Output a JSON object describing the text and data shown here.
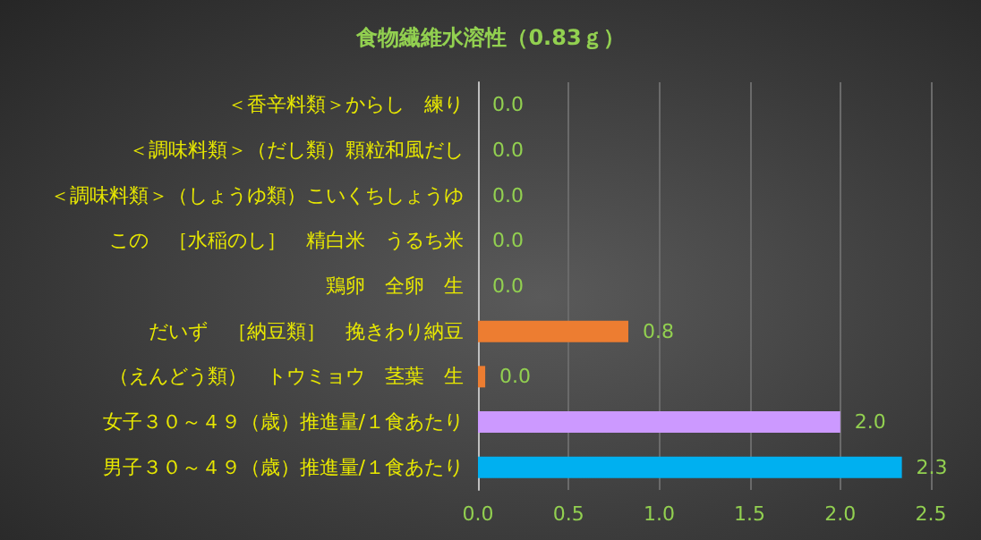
{
  "chart_data": {
    "type": "bar",
    "orientation": "horizontal",
    "title": "食物繊維水溶性（0.83ｇ）",
    "categories": [
      "＜香辛料類＞からし　練り",
      "＜調味料類＞（だし類）顆粒和風だし",
      "＜調味料類＞（しょうゆ類）こいくちしょうゆ",
      "この　［水稲のし］　精白米　うるち米",
      "鶏卵　全卵　生",
      "だいず　［納豆類］　挽きわり納豆",
      "（えんどう類）　トウミョウ　茎葉　生",
      "女子３０～４９（歳）推進量/１食あたり",
      "男子３０～４９（歳）推進量/１食あたり"
    ],
    "values": [
      0,
      0,
      0,
      0,
      0,
      0.83,
      0.04,
      2.0,
      2.34
    ],
    "colors": [
      "#ed7d31",
      "#ed7d31",
      "#ed7d31",
      "#ed7d31",
      "#ed7d31",
      "#ed7d31",
      "#ed7d31",
      "#cc99ff",
      "#00b0f0"
    ],
    "value_labels": [
      "0.0",
      "0.0",
      "0.0",
      "0.0",
      "0.0",
      "0.8",
      "0.0",
      "2.0",
      "2.3"
    ],
    "xlim": [
      0,
      2.5
    ],
    "xticks": [
      {
        "value": 0,
        "label": "0.0"
      },
      0.5,
      {
        "value": 1,
        "label": "1.0"
      },
      1.5,
      {
        "value": 2,
        "label": "2.0"
      },
      2.5
    ],
    "grid": "x"
  }
}
